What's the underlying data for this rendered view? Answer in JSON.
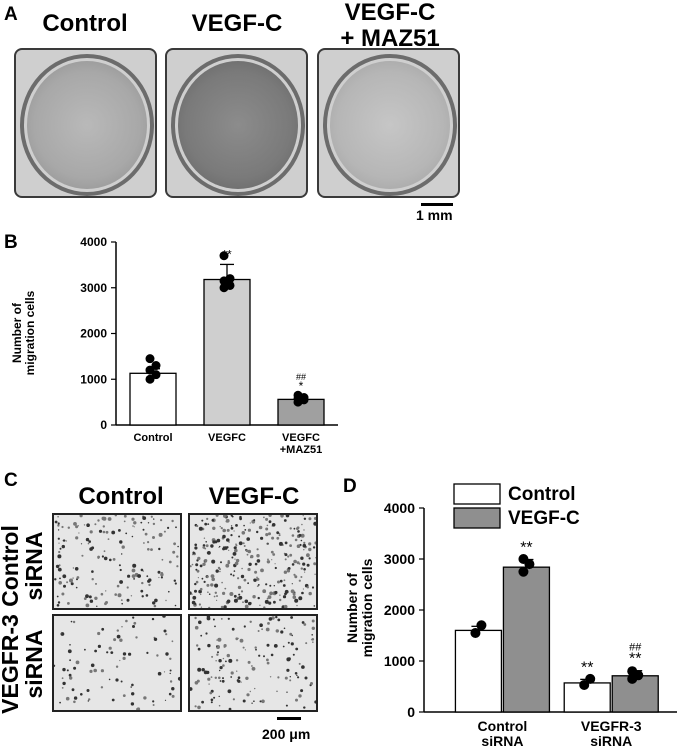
{
  "panels": {
    "a": "A",
    "b": "B",
    "c": "C",
    "d": "D"
  },
  "panel_a": {
    "headers": [
      "Control",
      "VEGF-C",
      "VEGF-C\n+ MAZ51"
    ],
    "scale_label": "1 mm"
  },
  "panel_c": {
    "col_headers": [
      "Control",
      "VEGF-C"
    ],
    "row_labels": [
      "Control\nsiRNA",
      "VEGFR-3\nsiRNA"
    ],
    "scale_label": "200 μm"
  },
  "chart_data": [
    {
      "type": "bar",
      "panel": "B",
      "categories": [
        "Control",
        "VEGFC",
        "VEGFC\n+MAZ51"
      ],
      "values": [
        1130,
        3180,
        560
      ],
      "errors": [
        100,
        330,
        70
      ],
      "points": [
        [
          1000,
          1100,
          1200,
          1300,
          1450
        ],
        [
          3000,
          3050,
          3150,
          3200,
          3700
        ],
        [
          500,
          550,
          580,
          600,
          650
        ]
      ],
      "annotations": [
        "",
        "**",
        "##\n*"
      ],
      "colors": [
        "#ffffff",
        "#cfcfcf",
        "#a0a0a0"
      ],
      "ylabel": "Number of\nmigration cells",
      "ylim": [
        0,
        4000
      ],
      "yticks": [
        0,
        1000,
        2000,
        3000,
        4000
      ]
    },
    {
      "type": "bar",
      "panel": "D",
      "categories": [
        "Control\nsiRNA",
        "VEGFR-3\nsiRNA"
      ],
      "series": [
        {
          "name": "Control",
          "color": "#ffffff",
          "values": [
            1600,
            570
          ],
          "errors": [
            80,
            70
          ],
          "points": [
            [
              1550,
              1700
            ],
            [
              530,
              650
            ]
          ],
          "annotations": [
            "",
            "**"
          ]
        },
        {
          "name": "VEGF-C",
          "color": "#8f8f8f",
          "values": [
            2840,
            710
          ],
          "errors": [
            150,
            100
          ],
          "points": [
            [
              2750,
              2900,
              3000
            ],
            [
              650,
              720,
              800
            ]
          ],
          "annotations": [
            "**",
            "##\n**"
          ]
        }
      ],
      "ylabel": "Number of\nmigration cells",
      "ylim": [
        0,
        4000
      ],
      "yticks": [
        0,
        1000,
        2000,
        3000,
        4000
      ],
      "legend": "top-left"
    }
  ]
}
